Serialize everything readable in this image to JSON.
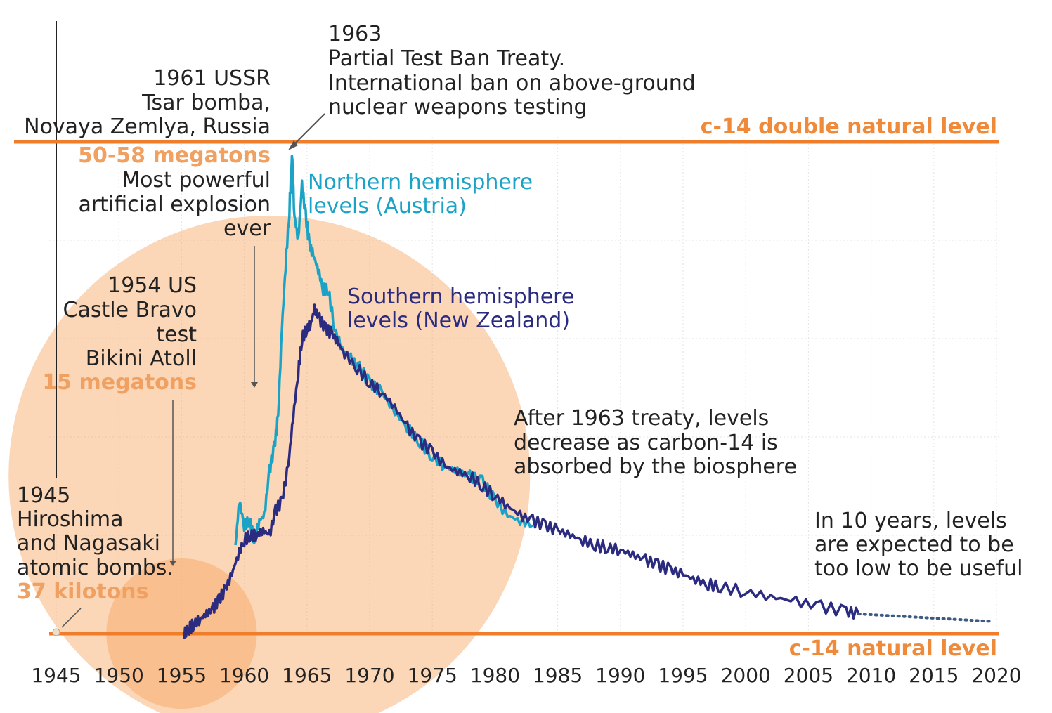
{
  "chart_data": {
    "type": "line",
    "title": "",
    "xlabel": "",
    "ylabel": "",
    "xlim": [
      1945,
      2020
    ],
    "ylim": [
      0,
      1
    ],
    "x_ticks": [
      "1945",
      "1950",
      "1955",
      "1960",
      "1965",
      "1970",
      "1975",
      "1980",
      "1985",
      "1990",
      "1995",
      "2000",
      "2005",
      "2010",
      "2015",
      "2020"
    ],
    "grid": true,
    "reference_lines": [
      {
        "name": "c-14 natural level",
        "y": 0,
        "color": "#ef7d2a"
      },
      {
        "name": "c-14 double natural level",
        "y": 1,
        "color": "#ef7d2a"
      }
    ],
    "series": [
      {
        "name": "Northern hemisphere levels (Austria)",
        "color": "#1aa3c6",
        "x": [
          1959.3,
          1959.6,
          1960.0,
          1960.4,
          1960.8,
          1961.2,
          1961.6,
          1962.0,
          1962.4,
          1962.7,
          1963.0,
          1963.3,
          1963.6,
          1963.8,
          1964.0,
          1964.3,
          1964.6,
          1964.9,
          1965.2,
          1965.5,
          1965.9,
          1966.3,
          1966.7,
          1967.2,
          1967.8,
          1968.5,
          1969.2,
          1970.0,
          1971.0,
          1972.0,
          1973.0,
          1974.0,
          1975.0,
          1976.0,
          1977.0,
          1978.0,
          1979.0,
          1980.0,
          1981.0,
          1982.0,
          1983.0
        ],
        "values": [
          0.18,
          0.27,
          0.22,
          0.23,
          0.19,
          0.23,
          0.24,
          0.33,
          0.38,
          0.44,
          0.62,
          0.75,
          0.86,
          0.98,
          0.85,
          0.8,
          0.91,
          0.85,
          0.79,
          0.77,
          0.74,
          0.7,
          0.7,
          0.62,
          0.58,
          0.56,
          0.54,
          0.51,
          0.49,
          0.45,
          0.42,
          0.39,
          0.36,
          0.34,
          0.33,
          0.32,
          0.31,
          0.27,
          0.24,
          0.23,
          0.22
        ]
      },
      {
        "name": "Southern hemisphere levels (New Zealand)",
        "color": "#2b2b7f",
        "x": [
          1955.2,
          1955.6,
          1956.0,
          1956.5,
          1957.0,
          1957.5,
          1958.0,
          1958.5,
          1959.0,
          1959.5,
          1960.0,
          1960.5,
          1961.0,
          1961.5,
          1962.0,
          1962.5,
          1963.0,
          1963.5,
          1963.9,
          1964.3,
          1964.6,
          1965.0,
          1965.3,
          1965.6,
          1966.0,
          1966.5,
          1967.0,
          1967.5,
          1968.0,
          1969.0,
          1970.0,
          1971.0,
          1972.0,
          1973.0,
          1974.0,
          1975.0,
          1976.0,
          1977.0,
          1978.0,
          1979.0,
          1980.0,
          1981.0,
          1982.0,
          1983.0,
          1984.0,
          1985.0,
          1986.0,
          1987.0,
          1988.0,
          1989.0,
          1990.0,
          1991.0,
          1992.0,
          1993.0,
          1994.0,
          1995.0,
          1996.0,
          1997.0,
          1998.0,
          2000.0,
          2002.0,
          2004.0,
          2006.0,
          2008.0,
          2009.0
        ],
        "values": [
          0.0,
          0.01,
          0.02,
          0.03,
          0.04,
          0.05,
          0.07,
          0.09,
          0.12,
          0.16,
          0.19,
          0.2,
          0.2,
          0.21,
          0.2,
          0.25,
          0.27,
          0.34,
          0.44,
          0.53,
          0.6,
          0.62,
          0.63,
          0.66,
          0.64,
          0.62,
          0.61,
          0.59,
          0.57,
          0.54,
          0.51,
          0.49,
          0.46,
          0.42,
          0.39,
          0.37,
          0.34,
          0.33,
          0.32,
          0.3,
          0.28,
          0.26,
          0.24,
          0.23,
          0.22,
          0.21,
          0.2,
          0.19,
          0.18,
          0.175,
          0.17,
          0.16,
          0.15,
          0.14,
          0.13,
          0.12,
          0.11,
          0.1,
          0.095,
          0.085,
          0.075,
          0.065,
          0.055,
          0.045,
          0.04
        ]
      },
      {
        "name": "",
        "style": "dotted",
        "color": "#3d5a80",
        "x": [
          2009.0,
          2019.5
        ],
        "values": [
          0.04,
          0.025
        ]
      }
    ],
    "bubbles": [
      {
        "x": 1955.0,
        "y": 0.0,
        "r_scale": 15,
        "label_ref": "castle_bravo"
      },
      {
        "x": 1962.0,
        "y": 0.32,
        "r_scale": 52,
        "label_ref": "tsar_bomba"
      }
    ],
    "annotations": {
      "reference_top": "c-14 double natural level",
      "reference_bottom": "c-14 natural level",
      "treaty": [
        "1963",
        "Partial Test Ban Treaty.",
        "International ban on above-ground",
        "nuclear weapons testing"
      ],
      "tsar_bomba": [
        "1961 USSR",
        "Tsar bomba,",
        "Novaya Zemlya, Russia"
      ],
      "tsar_bomba_yield": "50-58 megatons",
      "tsar_bomba_desc": [
        "Most powerful",
        "artificial explosion",
        "ever"
      ],
      "castle_bravo": [
        "1954 US",
        "Castle Bravo",
        "test",
        "Bikini Atoll"
      ],
      "castle_bravo_yield": "15 megatons",
      "hiroshima": [
        "1945",
        "Hiroshima",
        "and Nagasaki",
        "atomic bombs."
      ],
      "hiroshima_yield": "37 kilotons",
      "northern_label": [
        "Northern hemisphere",
        "levels (Austria)"
      ],
      "southern_label": [
        "Southern hemisphere",
        "levels (New Zealand)"
      ],
      "after_treaty": [
        "After 1963 treaty, levels",
        "decrease as carbon-14 is",
        "absorbed by the biosphere"
      ],
      "future": [
        "In 10 years, levels",
        "are expected to be",
        "too low to be useful"
      ]
    }
  }
}
